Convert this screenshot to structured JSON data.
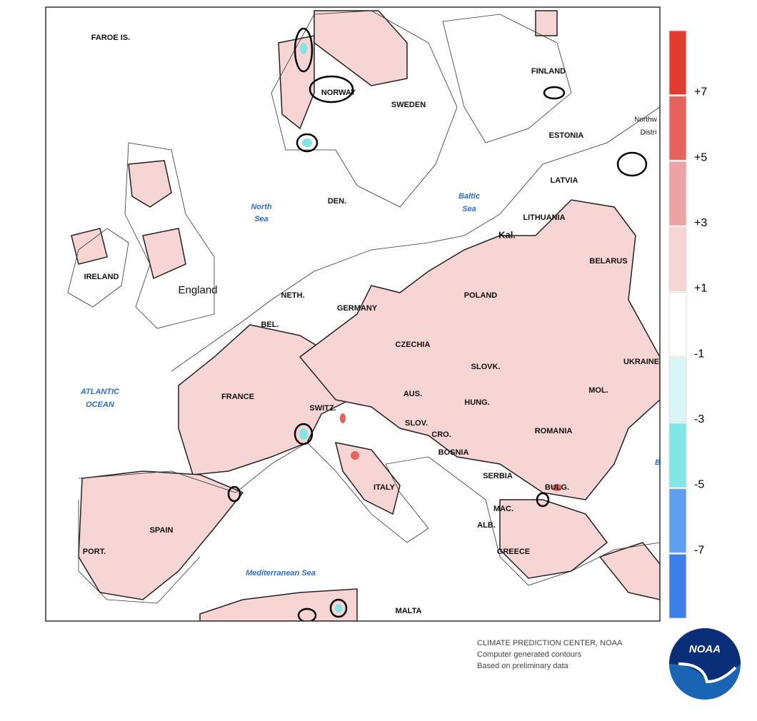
{
  "map": {
    "labels": [
      "FAROE IS.",
      "FINLAND",
      "NORWAY",
      "SWEDEN",
      "ESTONIA",
      "Northw",
      "Distri",
      "LATVIA",
      "DEN.",
      "LITHUANIA",
      "Kal.",
      "IRELAND",
      "BELARUS",
      "England",
      "NETH.",
      "POLAND",
      "GERMANY",
      "BEL.",
      "CZECHIA",
      "UKRAINE",
      "SLOVK.",
      "FRANCE",
      "MOL.",
      "AUS.",
      "SWITZ.",
      "HUNG.",
      "SLOV.",
      "ROMANIA",
      "CRO.",
      "BOSNIA",
      "B",
      "SERBIA",
      "ITALY",
      "BULG.",
      "SPAIN",
      "MAC.",
      "ALB.",
      "PORT.",
      "GREECE",
      "MALTA"
    ],
    "water_labels": [
      "North",
      "Sea",
      "Baltic",
      "Sea",
      "ATLANTIC",
      "OCEAN",
      "Mediterranean Sea"
    ]
  },
  "legend": {
    "colors": [
      "#e23b2f",
      "#e6635d",
      "#eea3a3",
      "#f7d5d5",
      "#ffffff",
      "#d8f6f6",
      "#80e6e6",
      "#5c9fee",
      "#3c7ee8"
    ],
    "labels": [
      "+7",
      "+5",
      "+3",
      "+1",
      "-1",
      "-3",
      "-5",
      "-7"
    ]
  },
  "credits": [
    "CLIMATE PREDICTION CENTER, NOAA",
    "Computer generated contours",
    "Based on preliminary data"
  ],
  "logo": "NOAA"
}
